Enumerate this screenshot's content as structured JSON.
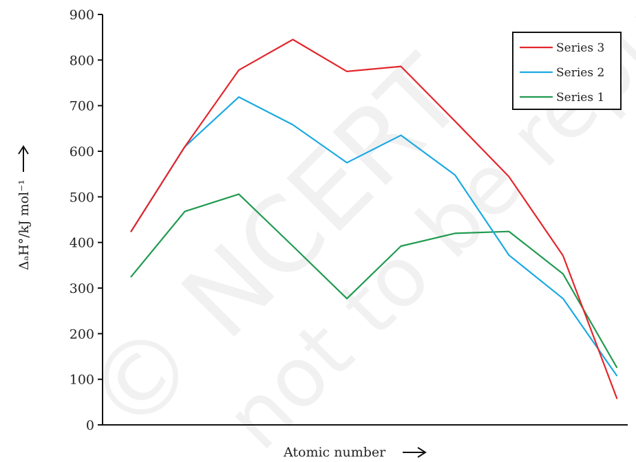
{
  "chart_data": {
    "type": "line",
    "xlabel": "Atomic number",
    "ylabel": "ΔₐH°/kJ mol⁻¹",
    "ylim": [
      0,
      900
    ],
    "yticks": [
      0,
      100,
      200,
      300,
      400,
      500,
      600,
      700,
      800,
      900
    ],
    "grid": false,
    "legend_position": "top-right",
    "x": [
      1,
      2,
      3,
      4,
      5,
      6,
      7,
      8,
      9,
      10
    ],
    "series": [
      {
        "name": "Series 3",
        "color": "#e3262c",
        "values": [
          423,
          610,
          778,
          845,
          775,
          786,
          666,
          544,
          371,
          57
        ]
      },
      {
        "name": "Series 2",
        "color": "#1aa9e2",
        "values": [
          423,
          610,
          719,
          658,
          575,
          635,
          548,
          372,
          277,
          107
        ]
      },
      {
        "name": "Series 1",
        "color": "#1f9a4f",
        "values": [
          324,
          468,
          506,
          392,
          277,
          392,
          420,
          424,
          331,
          125
        ]
      }
    ]
  },
  "watermark": {
    "line1": "© NCERT",
    "line2": "not to be republished"
  }
}
